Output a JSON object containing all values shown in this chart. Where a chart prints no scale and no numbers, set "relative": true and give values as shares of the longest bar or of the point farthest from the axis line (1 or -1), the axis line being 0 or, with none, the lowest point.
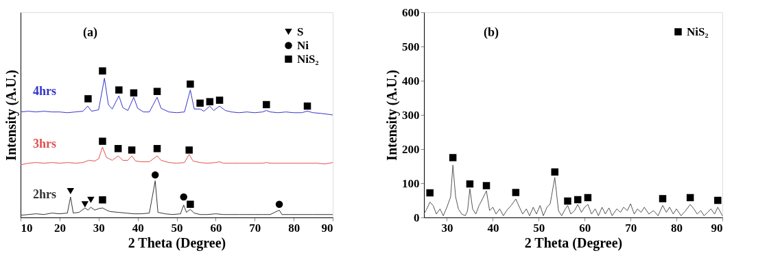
{
  "chart_data": [
    {
      "type": "line",
      "relative": true,
      "xlabel": "2 Theta (Degree)",
      "ylabel": "Intensity (A.U.)",
      "xlim": [
        10,
        90
      ],
      "xticks": [
        10,
        20,
        30,
        40,
        50,
        60,
        70,
        80,
        90
      ],
      "tick_labels": "x",
      "grid": false,
      "legend": "top right",
      "annotations": [
        "(a)"
      ],
      "series": [
        {
          "name": "4hrs",
          "color": "#3333cc",
          "x": [
            10,
            12,
            14,
            16,
            18,
            20,
            22,
            24,
            26,
            27.2,
            28.2,
            30,
            31.5,
            32.5,
            33.5,
            35.2,
            36.2,
            37.5,
            39,
            40,
            41.5,
            43,
            45,
            46,
            48,
            50,
            52,
            53.5,
            54.5,
            56,
            57,
            58.5,
            59.5,
            61,
            62.5,
            64,
            66,
            68,
            70,
            72,
            73,
            74,
            76,
            78,
            80,
            82,
            83.5,
            85,
            87,
            90
          ],
          "values": [
            0.72,
            0.725,
            0.72,
            0.725,
            0.72,
            0.72,
            0.715,
            0.72,
            0.725,
            0.76,
            0.725,
            0.735,
            0.95,
            0.77,
            0.74,
            0.83,
            0.75,
            0.73,
            0.82,
            0.745,
            0.72,
            0.72,
            0.82,
            0.745,
            0.72,
            0.715,
            0.72,
            0.87,
            0.74,
            0.74,
            0.725,
            0.76,
            0.73,
            0.76,
            0.73,
            0.72,
            0.715,
            0.72,
            0.715,
            0.72,
            0.73,
            0.72,
            0.715,
            0.72,
            0.715,
            0.715,
            0.725,
            0.715,
            0.71,
            0.7
          ]
        },
        {
          "name": "3hrs",
          "color": "#e05050",
          "x": [
            10,
            12,
            14,
            16,
            18,
            20,
            22,
            24,
            26,
            27.5,
            29,
            30,
            31,
            32,
            33.5,
            35,
            36.2,
            37.5,
            38.5,
            39.5,
            41,
            43,
            45,
            46,
            48,
            50,
            52,
            53.2,
            54.2,
            56,
            58,
            60,
            61,
            62,
            64,
            66,
            68,
            70,
            72,
            73,
            74,
            76,
            78,
            80,
            82,
            84,
            86,
            88,
            90
          ],
          "values": [
            0.36,
            0.37,
            0.375,
            0.37,
            0.375,
            0.37,
            0.375,
            0.37,
            0.375,
            0.39,
            0.385,
            0.4,
            0.48,
            0.41,
            0.39,
            0.42,
            0.39,
            0.39,
            0.42,
            0.385,
            0.38,
            0.38,
            0.42,
            0.39,
            0.375,
            0.37,
            0.375,
            0.43,
            0.385,
            0.375,
            0.37,
            0.375,
            0.38,
            0.37,
            0.37,
            0.37,
            0.37,
            0.37,
            0.37,
            0.375,
            0.37,
            0.37,
            0.37,
            0.37,
            0.37,
            0.37,
            0.37,
            0.365,
            0.375
          ]
        },
        {
          "name": "2hrs",
          "color": "#333333",
          "x": [
            10,
            12,
            14,
            16,
            18,
            20,
            22,
            22.8,
            23.5,
            25,
            26.5,
            27.3,
            28,
            29,
            30,
            31,
            32,
            33,
            35,
            37,
            39,
            41,
            43,
            44.5,
            45.2,
            47,
            49,
            51,
            51.8,
            52.5,
            53.5,
            54.5,
            56,
            58,
            60,
            62,
            64,
            66,
            68,
            70,
            72,
            74,
            76.3,
            77,
            79,
            81,
            83,
            85,
            87,
            90
          ],
          "values": [
            0.015,
            0.02,
            0.025,
            0.02,
            0.03,
            0.025,
            0.03,
            0.14,
            0.03,
            0.035,
            0.065,
            0.05,
            0.07,
            0.05,
            0.06,
            0.065,
            0.05,
            0.04,
            0.035,
            0.03,
            0.025,
            0.025,
            0.03,
            0.25,
            0.035,
            0.025,
            0.02,
            0.025,
            0.085,
            0.035,
            0.055,
            0.03,
            0.02,
            0.02,
            0.025,
            0.02,
            0.02,
            0.02,
            0.02,
            0.02,
            0.02,
            0.02,
            0.05,
            0.02,
            0.02,
            0.02,
            0.02,
            0.02,
            0.02,
            0.02
          ]
        },
        {
          "name": "S",
          "type": "scatter",
          "marker": "triangle",
          "color": "#000000",
          "x": [
            22.8,
            26.5,
            28
          ],
          "values": [
            0.18,
            0.09,
            0.12
          ]
        },
        {
          "name": "Ni",
          "type": "scatter",
          "marker": "circle",
          "color": "#000000",
          "x": [
            44.5,
            51.8,
            76.3
          ],
          "values": [
            0.29,
            0.14,
            0.09
          ]
        },
        {
          "name": "NiS₂",
          "type": "scatter",
          "marker": "square",
          "color": "#000000",
          "x": [
            27.3,
            31,
            35.2,
            39,
            45,
            53.5,
            56,
            58.5,
            61,
            73,
            83.5,
            31,
            35,
            38.5,
            45,
            53.2,
            31,
            53.5
          ],
          "values": [
            0.81,
            1.0,
            0.87,
            0.85,
            0.86,
            0.91,
            0.78,
            0.79,
            0.8,
            0.77,
            0.76,
            0.52,
            0.47,
            0.46,
            0.47,
            0.46,
            0.12,
            0.09
          ]
        }
      ]
    },
    {
      "type": "line",
      "xlabel": "2 Theta (Degree)",
      "ylabel": "Intensity (A.U.)",
      "xlim": [
        25,
        90
      ],
      "xticks": [
        30,
        40,
        50,
        60,
        70,
        80,
        90
      ],
      "ylim": [
        0,
        600
      ],
      "yticks": [
        0,
        100,
        200,
        300,
        400,
        500,
        600
      ],
      "grid": false,
      "legend": "top right",
      "annotations": [
        "(b)"
      ],
      "series": [
        {
          "color": "#555555",
          "x": [
            25,
            25.8,
            26.3,
            27,
            27.7,
            28.5,
            29.2,
            30,
            30.8,
            31.3,
            31.9,
            32.5,
            33.2,
            34,
            34.5,
            35,
            35.6,
            36.3,
            37,
            37.6,
            38.6,
            39.3,
            40,
            40.7,
            41.5,
            42.3,
            43,
            44,
            45,
            45.8,
            46.5,
            47.3,
            48,
            48.8,
            49.5,
            50.3,
            51,
            51.8,
            52.5,
            53.5,
            54.3,
            55,
            55.8,
            56.3,
            57,
            57.8,
            58.5,
            59.3,
            60,
            60.7,
            61.5,
            62.3,
            63,
            63.8,
            64.5,
            65.3,
            66,
            67,
            67.8,
            68.5,
            69.3,
            70,
            70.8,
            71.5,
            72.3,
            73,
            74,
            75,
            76,
            77,
            77.8,
            78.5,
            79.3,
            80,
            81,
            82,
            83,
            83.8,
            84.5,
            85.3,
            86,
            86.8,
            87.5,
            88.3,
            89,
            90
          ],
          "values": [
            10,
            30,
            45,
            35,
            10,
            25,
            5,
            30,
            60,
            153,
            60,
            25,
            10,
            5,
            20,
            84,
            25,
            10,
            35,
            50,
            78,
            20,
            30,
            10,
            25,
            5,
            20,
            35,
            54,
            30,
            10,
            25,
            5,
            30,
            10,
            35,
            5,
            30,
            40,
            117,
            20,
            5,
            25,
            35,
            10,
            20,
            38,
            15,
            30,
            38,
            10,
            25,
            5,
            30,
            10,
            28,
            5,
            25,
            15,
            30,
            20,
            40,
            10,
            25,
            15,
            30,
            10,
            20,
            5,
            35,
            15,
            30,
            10,
            25,
            5,
            20,
            38,
            25,
            10,
            20,
            5,
            15,
            25,
            10,
            30,
            5
          ]
        },
        {
          "name": "NiS₂",
          "type": "scatter",
          "marker": "square",
          "color": "#000000",
          "x": [
            26.3,
            31.3,
            35,
            38.6,
            45,
            53.5,
            56.3,
            58.5,
            60.7,
            77,
            83,
            89
          ],
          "values": [
            72,
            175,
            98,
            93,
            73,
            133,
            48,
            52,
            58,
            55,
            58,
            50
          ]
        }
      ]
    }
  ]
}
